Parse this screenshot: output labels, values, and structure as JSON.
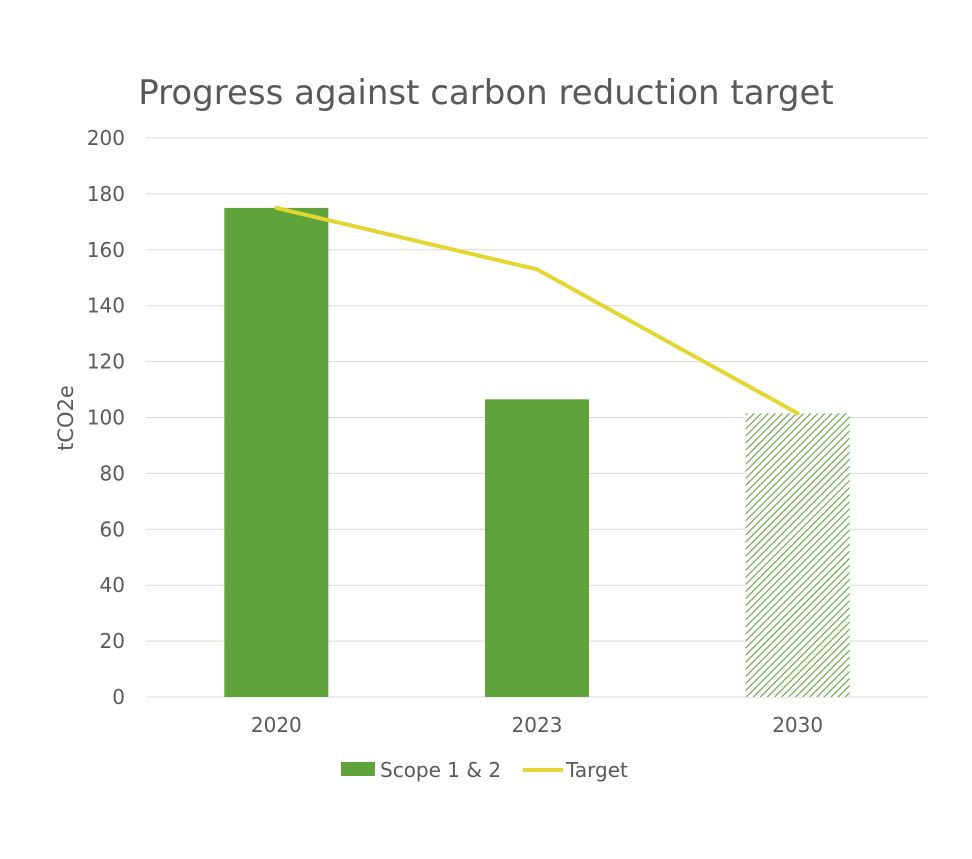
{
  "chart_data": {
    "type": "bar",
    "title": "Progress against carbon reduction target",
    "xlabel": "",
    "ylabel": "tCO2e",
    "categories": [
      "2020",
      "2023",
      "2030"
    ],
    "ylim": [
      0,
      200
    ],
    "yticks": [
      0,
      20,
      40,
      60,
      80,
      100,
      120,
      140,
      160,
      180,
      200
    ],
    "grid": true,
    "legend_position": "bottom",
    "series": [
      {
        "name": "Scope 1 & 2",
        "kind": "bar",
        "color": "#5fa33a",
        "values": [
          175,
          106.5,
          101.5
        ],
        "hatched": [
          false,
          false,
          true
        ]
      },
      {
        "name": "Target",
        "kind": "line",
        "color": "#e3d630",
        "values": [
          175,
          153,
          101.5
        ]
      }
    ]
  }
}
